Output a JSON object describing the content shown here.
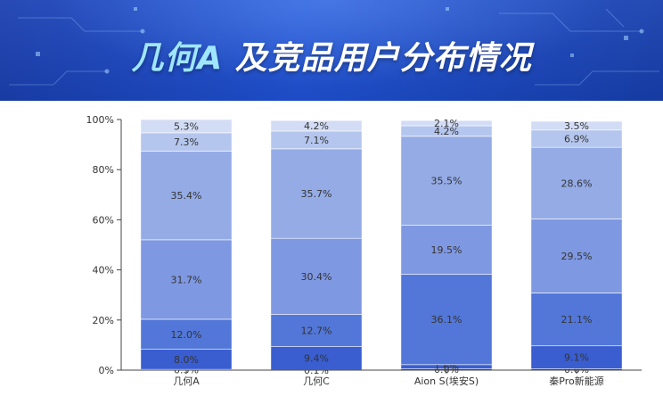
{
  "header": {
    "title_accent": "几何A",
    "title_rest": "及竞品用户分布情况"
  },
  "chart_data": {
    "type": "bar",
    "stacked": true,
    "categories": [
      "几何A",
      "几何C",
      "Aion S(埃安S)",
      "秦Pro新能源"
    ],
    "y_tick_labels": [
      "0%",
      "20%",
      "40%",
      "60%",
      "80%",
      "100%"
    ],
    "ylim": [
      0,
      100
    ],
    "series": [
      {
        "color": "#2244c8",
        "values": [
          0.3,
          0.1,
          0.6,
          0.6
        ],
        "labels": [
          "0.3%",
          "0.1%",
          "0.6%",
          "0.6%"
        ]
      },
      {
        "color": "#3a5ed0",
        "values": [
          8.0,
          9.4,
          1.6,
          9.1
        ],
        "labels": [
          "8.0%",
          "9.4%",
          "1.6%",
          "9.1%"
        ]
      },
      {
        "color": "#5277d8",
        "values": [
          12.0,
          12.7,
          36.1,
          21.1
        ],
        "labels": [
          "12.0%",
          "12.7%",
          "36.1%",
          "21.1%"
        ]
      },
      {
        "color": "#7f98e2",
        "values": [
          31.7,
          30.4,
          19.5,
          29.5
        ],
        "labels": [
          "31.7%",
          "30.4%",
          "19.5%",
          "29.5%"
        ]
      },
      {
        "color": "#94abe6",
        "values": [
          35.4,
          35.7,
          35.5,
          28.6
        ],
        "labels": [
          "35.4%",
          "35.7%",
          "35.5%",
          "28.6%"
        ]
      },
      {
        "color": "#b5c6ee",
        "values": [
          7.3,
          7.1,
          4.2,
          6.9
        ],
        "labels": [
          "7.3%",
          "7.1%",
          "4.2%",
          "6.9%"
        ]
      },
      {
        "color": "#d2dcf5",
        "values": [
          5.3,
          4.2,
          2.1,
          3.5
        ],
        "labels": [
          "5.3%",
          "4.2%",
          "2.1%",
          "3.5%"
        ]
      }
    ]
  }
}
